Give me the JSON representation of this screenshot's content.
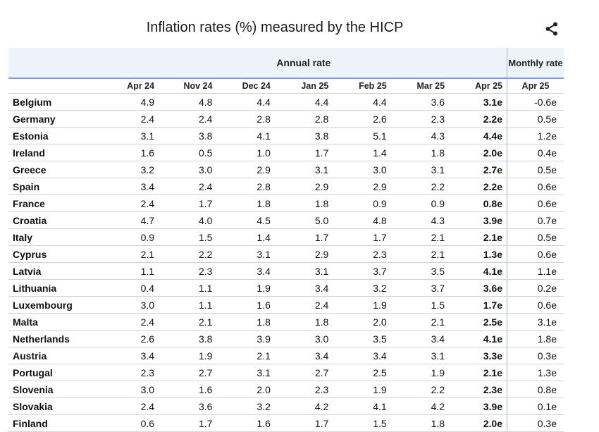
{
  "title": "Inflation rates (%) measured by the HICP",
  "icons": {
    "share": "share-icon"
  },
  "chart_data": {
    "type": "table",
    "title": "Inflation rates (%) measured by the HICP",
    "group_headers": {
      "annual": "Annual rate",
      "monthly": "Monthly rate"
    },
    "columns": [
      "Apr 24",
      "Nov 24",
      "Dec 24",
      "Jan 25",
      "Feb 25",
      "Mar 25",
      "Apr 25",
      "Apr 25"
    ],
    "rows": [
      {
        "country": "Belgium",
        "values": [
          "4.9",
          "4.8",
          "4.4",
          "4.4",
          "4.4",
          "3.6",
          "3.1e",
          "-0.6e"
        ]
      },
      {
        "country": "Germany",
        "values": [
          "2.4",
          "2.4",
          "2.8",
          "2.8",
          "2.6",
          "2.3",
          "2.2e",
          "0.5e"
        ]
      },
      {
        "country": "Estonia",
        "values": [
          "3.1",
          "3.8",
          "4.1",
          "3.8",
          "5.1",
          "4.3",
          "4.4e",
          "1.2e"
        ]
      },
      {
        "country": "Ireland",
        "values": [
          "1.6",
          "0.5",
          "1.0",
          "1.7",
          "1.4",
          "1.8",
          "2.0e",
          "0.4e"
        ]
      },
      {
        "country": "Greece",
        "values": [
          "3.2",
          "3.0",
          "2.9",
          "3.1",
          "3.0",
          "3.1",
          "2.7e",
          "0.5e"
        ]
      },
      {
        "country": "Spain",
        "values": [
          "3.4",
          "2.4",
          "2.8",
          "2.9",
          "2.9",
          "2.2",
          "2.2e",
          "0.6e"
        ]
      },
      {
        "country": "France",
        "values": [
          "2.4",
          "1.7",
          "1.8",
          "1.8",
          "0.9",
          "0.9",
          "0.8e",
          "0.6e"
        ]
      },
      {
        "country": "Croatia",
        "values": [
          "4.7",
          "4.0",
          "4.5",
          "5.0",
          "4.8",
          "4.3",
          "3.9e",
          "0.7e"
        ]
      },
      {
        "country": "Italy",
        "values": [
          "0.9",
          "1.5",
          "1.4",
          "1.7",
          "1.7",
          "2.1",
          "2.1e",
          "0.5e"
        ]
      },
      {
        "country": "Cyprus",
        "values": [
          "2.1",
          "2.2",
          "3.1",
          "2.9",
          "2.3",
          "2.1",
          "1.3e",
          "0.6e"
        ]
      },
      {
        "country": "Latvia",
        "values": [
          "1.1",
          "2.3",
          "3.4",
          "3.1",
          "3.7",
          "3.5",
          "4.1e",
          "1.1e"
        ]
      },
      {
        "country": "Lithuania",
        "values": [
          "0.4",
          "1.1",
          "1.9",
          "3.4",
          "3.2",
          "3.7",
          "3.6e",
          "0.2e"
        ]
      },
      {
        "country": "Luxembourg",
        "values": [
          "3.0",
          "1.1",
          "1.6",
          "2.4",
          "1.9",
          "1.5",
          "1.7e",
          "0.6e"
        ]
      },
      {
        "country": "Malta",
        "values": [
          "2.4",
          "2.1",
          "1.8",
          "1.8",
          "2.0",
          "2.1",
          "2.5e",
          "3.1e"
        ]
      },
      {
        "country": "Netherlands",
        "values": [
          "2.6",
          "3.8",
          "3.9",
          "3.0",
          "3.5",
          "3.4",
          "4.1e",
          "1.8e"
        ]
      },
      {
        "country": "Austria",
        "values": [
          "3.4",
          "1.9",
          "2.1",
          "3.4",
          "3.4",
          "3.1",
          "3.3e",
          "0.3e"
        ]
      },
      {
        "country": "Portugal",
        "values": [
          "2.3",
          "2.7",
          "3.1",
          "2.7",
          "2.5",
          "1.9",
          "2.1e",
          "1.3e"
        ]
      },
      {
        "country": "Slovenia",
        "values": [
          "3.0",
          "1.6",
          "2.0",
          "2.3",
          "1.9",
          "2.2",
          "2.3e",
          "0.8e"
        ]
      },
      {
        "country": "Slovakia",
        "values": [
          "2.4",
          "3.6",
          "3.2",
          "4.2",
          "4.1",
          "4.2",
          "3.9e",
          "0.1e"
        ]
      },
      {
        "country": "Finland",
        "values": [
          "0.6",
          "1.7",
          "1.6",
          "1.7",
          "1.5",
          "1.8",
          "2.0e",
          "0.3e"
        ]
      }
    ]
  }
}
